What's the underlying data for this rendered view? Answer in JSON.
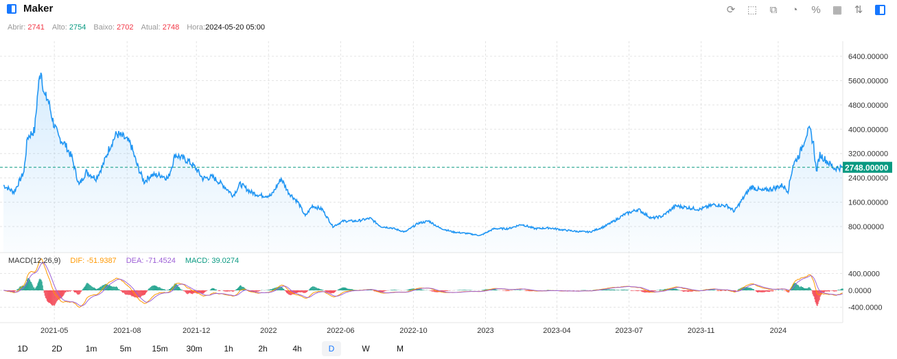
{
  "header": {
    "title": "Maker"
  },
  "toolbar": [
    "refresh-icon",
    "drawing-icon",
    "indicator-icon",
    "chart-type-icon",
    "percent-icon",
    "layout-icon",
    "sort-icon",
    "panel-toggle-icon"
  ],
  "ohlc": {
    "open_label": "Abrir:",
    "open": "2741",
    "high_label": "Alto:",
    "high": "2754",
    "low_label": "Baixo:",
    "low": "2702",
    "current_label": "Atual:",
    "current": "2748",
    "time_label": "Hora:",
    "time": "2024-05-20 05:00"
  },
  "macd_legend": {
    "name": "MACD(12,26,9)",
    "dif": "DIF: -51.9387",
    "dea": "DEA: -71.4524",
    "macd": "MACD: 39.0274"
  },
  "colors": {
    "line": "#2196f3",
    "up": "#089981",
    "down": "#f23645",
    "dif": "#ff9800",
    "dea": "#9c5fd6"
  },
  "periods": [
    "1D",
    "2D",
    "1m",
    "5m",
    "15m",
    "30m",
    "1h",
    "2h",
    "4h",
    "D",
    "W",
    "M"
  ],
  "active_period": "D",
  "chart_data": {
    "type": "line",
    "title": "Maker",
    "current_price_label": "2748.00000",
    "current_price": 2748,
    "ylim": [
      0,
      6800
    ],
    "y_ticks": [
      {
        "v": 800,
        "label": "800.00000"
      },
      {
        "v": 1600,
        "label": "1600.00000"
      },
      {
        "v": 2400,
        "label": "2400.00000"
      },
      {
        "v": 3200,
        "label": "3200.00000"
      },
      {
        "v": 4000,
        "label": "4000.00000"
      },
      {
        "v": 4800,
        "label": "4800.00000"
      },
      {
        "v": 5600,
        "label": "5600.00000"
      },
      {
        "v": 6400,
        "label": "6400.00000"
      }
    ],
    "macd_ticks": [
      {
        "v": 400,
        "label": "400.0000"
      },
      {
        "v": 0,
        "label": "0.0000"
      },
      {
        "v": -400,
        "label": "-400.0000"
      }
    ],
    "x_ticks": [
      {
        "d": 72,
        "label": "2021-05"
      },
      {
        "d": 175,
        "label": "2021-08"
      },
      {
        "d": 273,
        "label": "2021-12"
      },
      {
        "d": 375,
        "label": "2022"
      },
      {
        "d": 477,
        "label": "2022-06"
      },
      {
        "d": 580,
        "label": "2022-10"
      },
      {
        "d": 682,
        "label": "2023"
      },
      {
        "d": 783,
        "label": "2023-04"
      },
      {
        "d": 885,
        "label": "2023-07"
      },
      {
        "d": 987,
        "label": "2023-11"
      },
      {
        "d": 1096,
        "label": "2024"
      }
    ],
    "points": [
      [
        0,
        2155
      ],
      [
        15,
        1930
      ],
      [
        29,
        2600
      ],
      [
        34,
        3735
      ],
      [
        44,
        3960
      ],
      [
        49,
        5315
      ],
      [
        53,
        5990
      ],
      [
        58,
        5090
      ],
      [
        63,
        4980
      ],
      [
        71,
        4190
      ],
      [
        78,
        3735
      ],
      [
        87,
        3510
      ],
      [
        97,
        3060
      ],
      [
        107,
        2155
      ],
      [
        117,
        2600
      ],
      [
        131,
        2380
      ],
      [
        141,
        2830
      ],
      [
        150,
        3400
      ],
      [
        160,
        3850
      ],
      [
        170,
        3735
      ],
      [
        180,
        3510
      ],
      [
        189,
        2830
      ],
      [
        199,
        2270
      ],
      [
        209,
        2490
      ],
      [
        223,
        2490
      ],
      [
        233,
        2380
      ],
      [
        243,
        3170
      ],
      [
        252,
        3060
      ],
      [
        262,
        2950
      ],
      [
        272,
        2720
      ],
      [
        282,
        2380
      ],
      [
        296,
        2430
      ],
      [
        311,
        2155
      ],
      [
        325,
        1820
      ],
      [
        335,
        2200
      ],
      [
        350,
        1930
      ],
      [
        364,
        1820
      ],
      [
        379,
        1820
      ],
      [
        393,
        2380
      ],
      [
        403,
        1930
      ],
      [
        417,
        1590
      ],
      [
        427,
        1140
      ],
      [
        437,
        1480
      ],
      [
        451,
        1365
      ],
      [
        466,
        800
      ],
      [
        481,
        980
      ],
      [
        500,
        980
      ],
      [
        519,
        1070
      ],
      [
        534,
        800
      ],
      [
        549,
        755
      ],
      [
        568,
        620
      ],
      [
        587,
        910
      ],
      [
        602,
        980
      ],
      [
        617,
        755
      ],
      [
        636,
        620
      ],
      [
        655,
        575
      ],
      [
        675,
        505
      ],
      [
        694,
        730
      ],
      [
        714,
        730
      ],
      [
        733,
        870
      ],
      [
        752,
        730
      ],
      [
        772,
        755
      ],
      [
        791,
        690
      ],
      [
        811,
        640
      ],
      [
        830,
        620
      ],
      [
        850,
        800
      ],
      [
        864,
        980
      ],
      [
        879,
        1205
      ],
      [
        898,
        1365
      ],
      [
        917,
        1070
      ],
      [
        932,
        1140
      ],
      [
        951,
        1480
      ],
      [
        966,
        1430
      ],
      [
        985,
        1365
      ],
      [
        1005,
        1520
      ],
      [
        1024,
        1480
      ],
      [
        1034,
        1300
      ],
      [
        1049,
        1820
      ],
      [
        1058,
        2110
      ],
      [
        1073,
        1975
      ],
      [
        1087,
        2040
      ],
      [
        1102,
        2155
      ],
      [
        1110,
        1975
      ],
      [
        1117,
        2830
      ],
      [
        1126,
        3170
      ],
      [
        1136,
        3850
      ],
      [
        1141,
        3960
      ],
      [
        1146,
        3510
      ],
      [
        1150,
        2600
      ],
      [
        1155,
        3170
      ],
      [
        1165,
        2950
      ],
      [
        1175,
        2720
      ],
      [
        1187,
        2748
      ]
    ]
  }
}
